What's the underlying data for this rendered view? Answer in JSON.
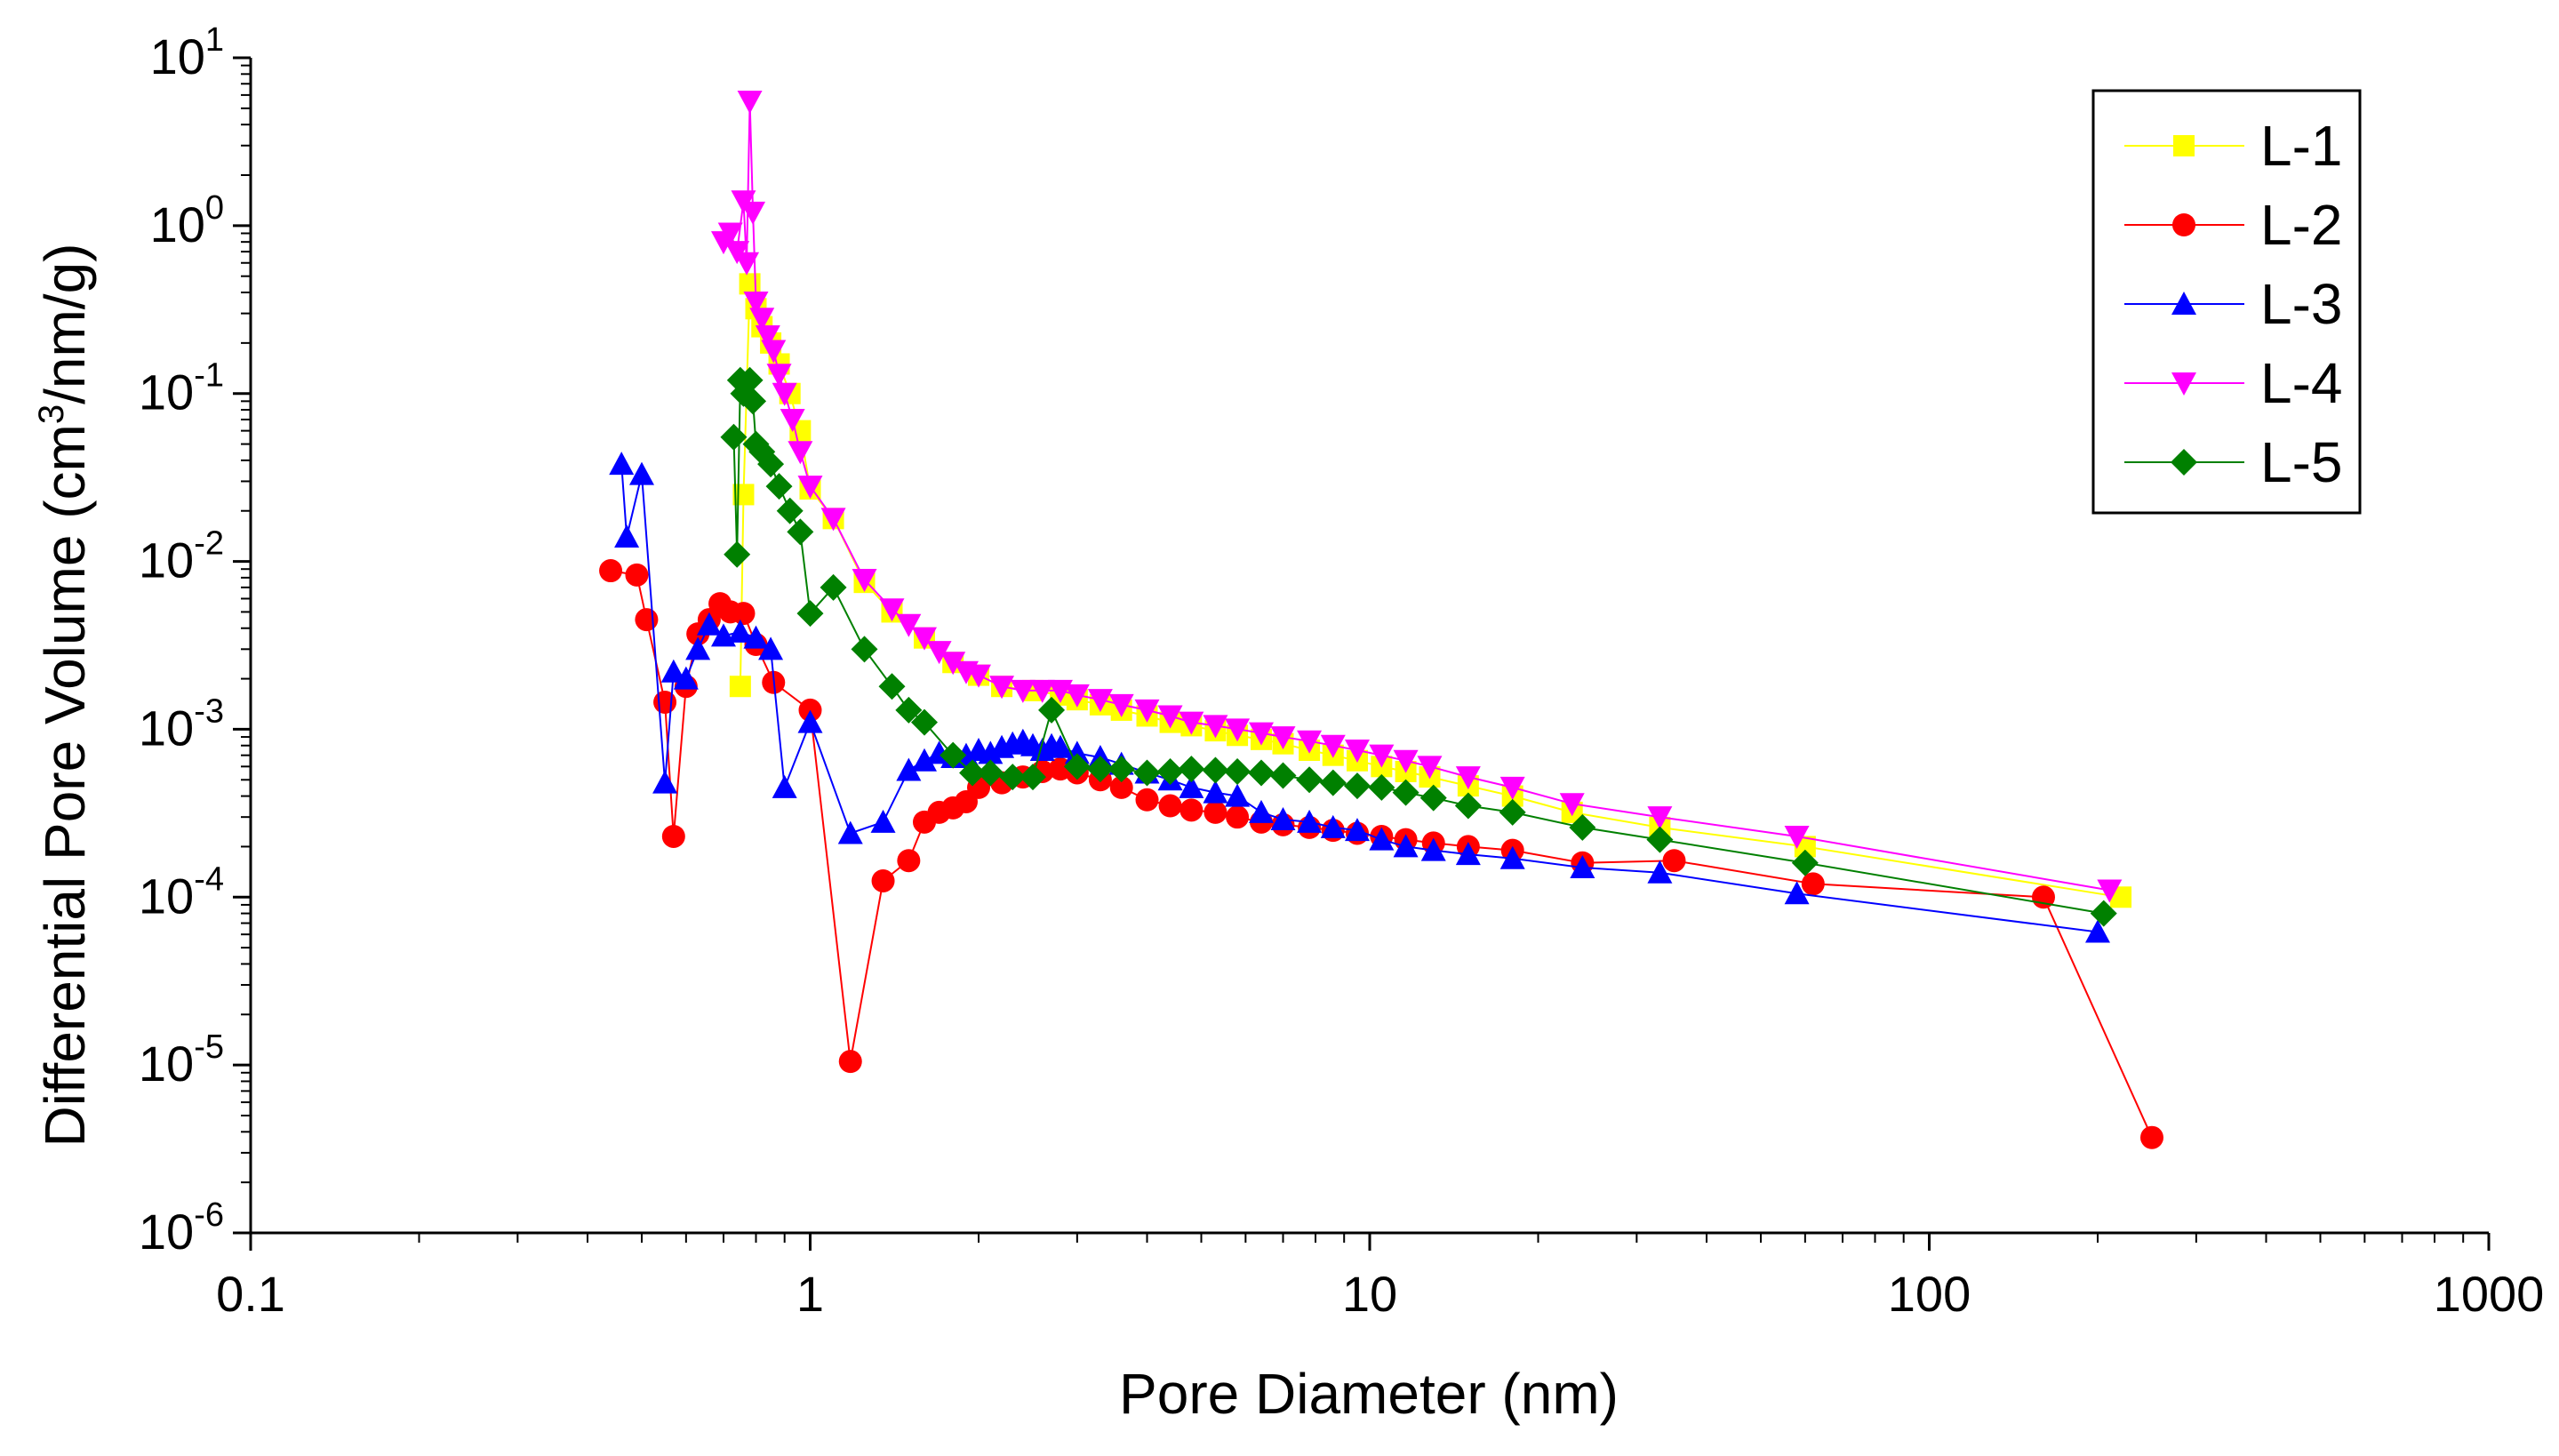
{
  "chart_data": {
    "type": "line",
    "title": "",
    "xlabel": "Pore Diameter (nm)",
    "ylabel_parts": {
      "main": "Differential Pore Volume (cm",
      "sup": "3",
      "tail": "/nm/g)"
    },
    "xscale": "log",
    "yscale": "log",
    "xlim": [
      0.1,
      1000
    ],
    "ylim": [
      1e-06,
      10
    ],
    "grid": false,
    "legend_position": "top-right",
    "x_ticks": [
      {
        "value": 0.1,
        "label": "0.1"
      },
      {
        "value": 1,
        "label": "1"
      },
      {
        "value": 10,
        "label": "10"
      },
      {
        "value": 100,
        "label": "100"
      },
      {
        "value": 1000,
        "label": "1000"
      }
    ],
    "y_ticks": [
      {
        "value": 1e-06,
        "base": "10",
        "exp": "-6"
      },
      {
        "value": 1e-05,
        "base": "10",
        "exp": "-5"
      },
      {
        "value": 0.0001,
        "base": "10",
        "exp": "-4"
      },
      {
        "value": 0.001,
        "base": "10",
        "exp": "-3"
      },
      {
        "value": 0.01,
        "base": "10",
        "exp": "-2"
      },
      {
        "value": 0.1,
        "base": "10",
        "exp": "-1"
      },
      {
        "value": 1,
        "base": "10",
        "exp": "0"
      },
      {
        "value": 10,
        "base": "10",
        "exp": "1"
      }
    ],
    "series": [
      {
        "name": "L-1",
        "color": "#ffff00",
        "marker": "square",
        "x": [
          0.75,
          0.76,
          0.78,
          0.8,
          0.82,
          0.85,
          0.88,
          0.92,
          0.96,
          1.0,
          1.1,
          1.25,
          1.4,
          1.6,
          1.8,
          2.0,
          2.2,
          2.5,
          2.8,
          3.0,
          3.3,
          3.6,
          4.0,
          4.4,
          4.8,
          5.3,
          5.8,
          6.4,
          7.0,
          7.8,
          8.6,
          9.5,
          10.5,
          11.6,
          12.8,
          15,
          18,
          23,
          33,
          60,
          220
        ],
        "y": [
          0.0018,
          0.025,
          0.45,
          0.32,
          0.25,
          0.2,
          0.15,
          0.1,
          0.06,
          0.027,
          0.018,
          0.0075,
          0.005,
          0.0035,
          0.0025,
          0.0021,
          0.0018,
          0.0017,
          0.0016,
          0.0015,
          0.0014,
          0.0013,
          0.0012,
          0.0011,
          0.00105,
          0.00098,
          0.00092,
          0.00087,
          0.00082,
          0.00075,
          0.0007,
          0.00065,
          0.0006,
          0.00056,
          0.00052,
          0.00046,
          0.0004,
          0.00032,
          0.00026,
          0.0002,
          0.0001
        ]
      },
      {
        "name": "L-2",
        "color": "#ff0000",
        "marker": "circle",
        "x": [
          0.44,
          0.49,
          0.51,
          0.55,
          0.57,
          0.6,
          0.63,
          0.66,
          0.69,
          0.72,
          0.76,
          0.8,
          0.86,
          1.0,
          1.18,
          1.35,
          1.5,
          1.6,
          1.7,
          1.8,
          1.9,
          2.0,
          2.2,
          2.4,
          2.6,
          2.8,
          3.0,
          3.3,
          3.6,
          4.0,
          4.4,
          4.8,
          5.3,
          5.8,
          6.4,
          7.0,
          7.8,
          8.6,
          9.5,
          10.5,
          11.6,
          13,
          15,
          18,
          24,
          35,
          62,
          160,
          250
        ],
        "y": [
          0.0088,
          0.0083,
          0.0045,
          0.00145,
          0.00023,
          0.0018,
          0.0037,
          0.0045,
          0.0056,
          0.005,
          0.0049,
          0.0032,
          0.0019,
          0.0013,
          1.05e-05,
          0.000125,
          0.000165,
          0.00028,
          0.00032,
          0.00034,
          0.00037,
          0.00045,
          0.00048,
          0.00052,
          0.00056,
          0.00058,
          0.00055,
          0.0005,
          0.00045,
          0.00038,
          0.00035,
          0.00033,
          0.00032,
          0.0003,
          0.00028,
          0.00027,
          0.00026,
          0.00025,
          0.00024,
          0.00023,
          0.00022,
          0.00021,
          0.0002,
          0.00019,
          0.00016,
          0.000165,
          0.00012,
          0.0001,
          3.7e-06
        ]
      },
      {
        "name": "L-3",
        "color": "#0000ff",
        "marker": "triangle-up",
        "x": [
          0.46,
          0.47,
          0.5,
          0.55,
          0.57,
          0.6,
          0.63,
          0.66,
          0.7,
          0.75,
          0.8,
          0.85,
          0.9,
          1.0,
          1.18,
          1.35,
          1.5,
          1.6,
          1.7,
          1.8,
          1.9,
          2.0,
          2.1,
          2.2,
          2.3,
          2.4,
          2.5,
          2.6,
          2.7,
          2.8,
          3.0,
          3.3,
          3.6,
          4.0,
          4.4,
          4.8,
          5.3,
          5.8,
          6.4,
          7.0,
          7.8,
          8.6,
          9.5,
          10.5,
          11.6,
          13,
          15,
          18,
          24,
          33,
          58,
          200
        ],
        "y": [
          0.038,
          0.014,
          0.033,
          0.00048,
          0.0022,
          0.002,
          0.003,
          0.0042,
          0.0036,
          0.0038,
          0.0035,
          0.003,
          0.00045,
          0.0011,
          0.00024,
          0.00028,
          0.00057,
          0.00065,
          0.00072,
          0.00068,
          0.0007,
          0.00075,
          0.00072,
          0.00078,
          0.00082,
          0.00085,
          0.0008,
          0.00075,
          0.0008,
          0.00078,
          0.00072,
          0.00068,
          0.00062,
          0.00055,
          0.0005,
          0.00045,
          0.00042,
          0.0004,
          0.00032,
          0.00029,
          0.00028,
          0.00026,
          0.00025,
          0.00022,
          0.0002,
          0.00019,
          0.00018,
          0.00017,
          0.00015,
          0.00014,
          0.000105,
          6.2e-05
        ]
      },
      {
        "name": "L-4",
        "color": "#ff00ff",
        "marker": "triangle-down",
        "x": [
          0.7,
          0.72,
          0.74,
          0.76,
          0.77,
          0.78,
          0.79,
          0.8,
          0.82,
          0.84,
          0.86,
          0.88,
          0.9,
          0.93,
          0.96,
          1.0,
          1.1,
          1.25,
          1.4,
          1.5,
          1.6,
          1.7,
          1.8,
          1.9,
          2.0,
          2.2,
          2.4,
          2.6,
          2.8,
          3.0,
          3.3,
          3.6,
          4.0,
          4.4,
          4.8,
          5.3,
          5.8,
          6.4,
          7.0,
          7.8,
          8.6,
          9.5,
          10.5,
          11.6,
          12.8,
          15,
          18,
          23,
          33,
          58,
          210
        ],
        "y": [
          0.8,
          0.9,
          0.7,
          1.4,
          0.6,
          5.5,
          1.2,
          0.35,
          0.28,
          0.22,
          0.18,
          0.13,
          0.1,
          0.07,
          0.045,
          0.028,
          0.018,
          0.0078,
          0.0052,
          0.0042,
          0.0035,
          0.0029,
          0.0025,
          0.0022,
          0.0021,
          0.0018,
          0.0017,
          0.0017,
          0.0017,
          0.0016,
          0.0015,
          0.0014,
          0.0013,
          0.0012,
          0.0011,
          0.00105,
          0.001,
          0.00095,
          0.0009,
          0.00085,
          0.0008,
          0.00075,
          0.0007,
          0.00065,
          0.0006,
          0.00052,
          0.00045,
          0.00036,
          0.0003,
          0.00023,
          0.00011
        ]
      },
      {
        "name": "L-5",
        "color": "#008000",
        "marker": "diamond",
        "x": [
          0.73,
          0.74,
          0.75,
          0.76,
          0.78,
          0.79,
          0.8,
          0.82,
          0.85,
          0.88,
          0.92,
          0.96,
          1.0,
          1.1,
          1.25,
          1.4,
          1.5,
          1.6,
          1.8,
          1.95,
          2.1,
          2.3,
          2.5,
          2.7,
          3.0,
          3.3,
          3.6,
          4.0,
          4.4,
          4.8,
          5.3,
          5.8,
          6.4,
          7.0,
          7.8,
          8.6,
          9.5,
          10.5,
          11.6,
          13,
          15,
          18,
          24,
          33,
          60,
          205
        ],
        "y": [
          0.055,
          0.011,
          0.12,
          0.1,
          0.12,
          0.09,
          0.05,
          0.045,
          0.038,
          0.028,
          0.02,
          0.015,
          0.0049,
          0.007,
          0.003,
          0.0018,
          0.0013,
          0.0011,
          0.0007,
          0.00055,
          0.00055,
          0.00052,
          0.00052,
          0.0013,
          0.0006,
          0.00058,
          0.00058,
          0.00055,
          0.00056,
          0.00058,
          0.00057,
          0.00056,
          0.00055,
          0.00053,
          0.0005,
          0.00048,
          0.00046,
          0.00045,
          0.00042,
          0.00039,
          0.00035,
          0.00032,
          0.00026,
          0.00022,
          0.00016,
          8e-05
        ]
      }
    ]
  }
}
